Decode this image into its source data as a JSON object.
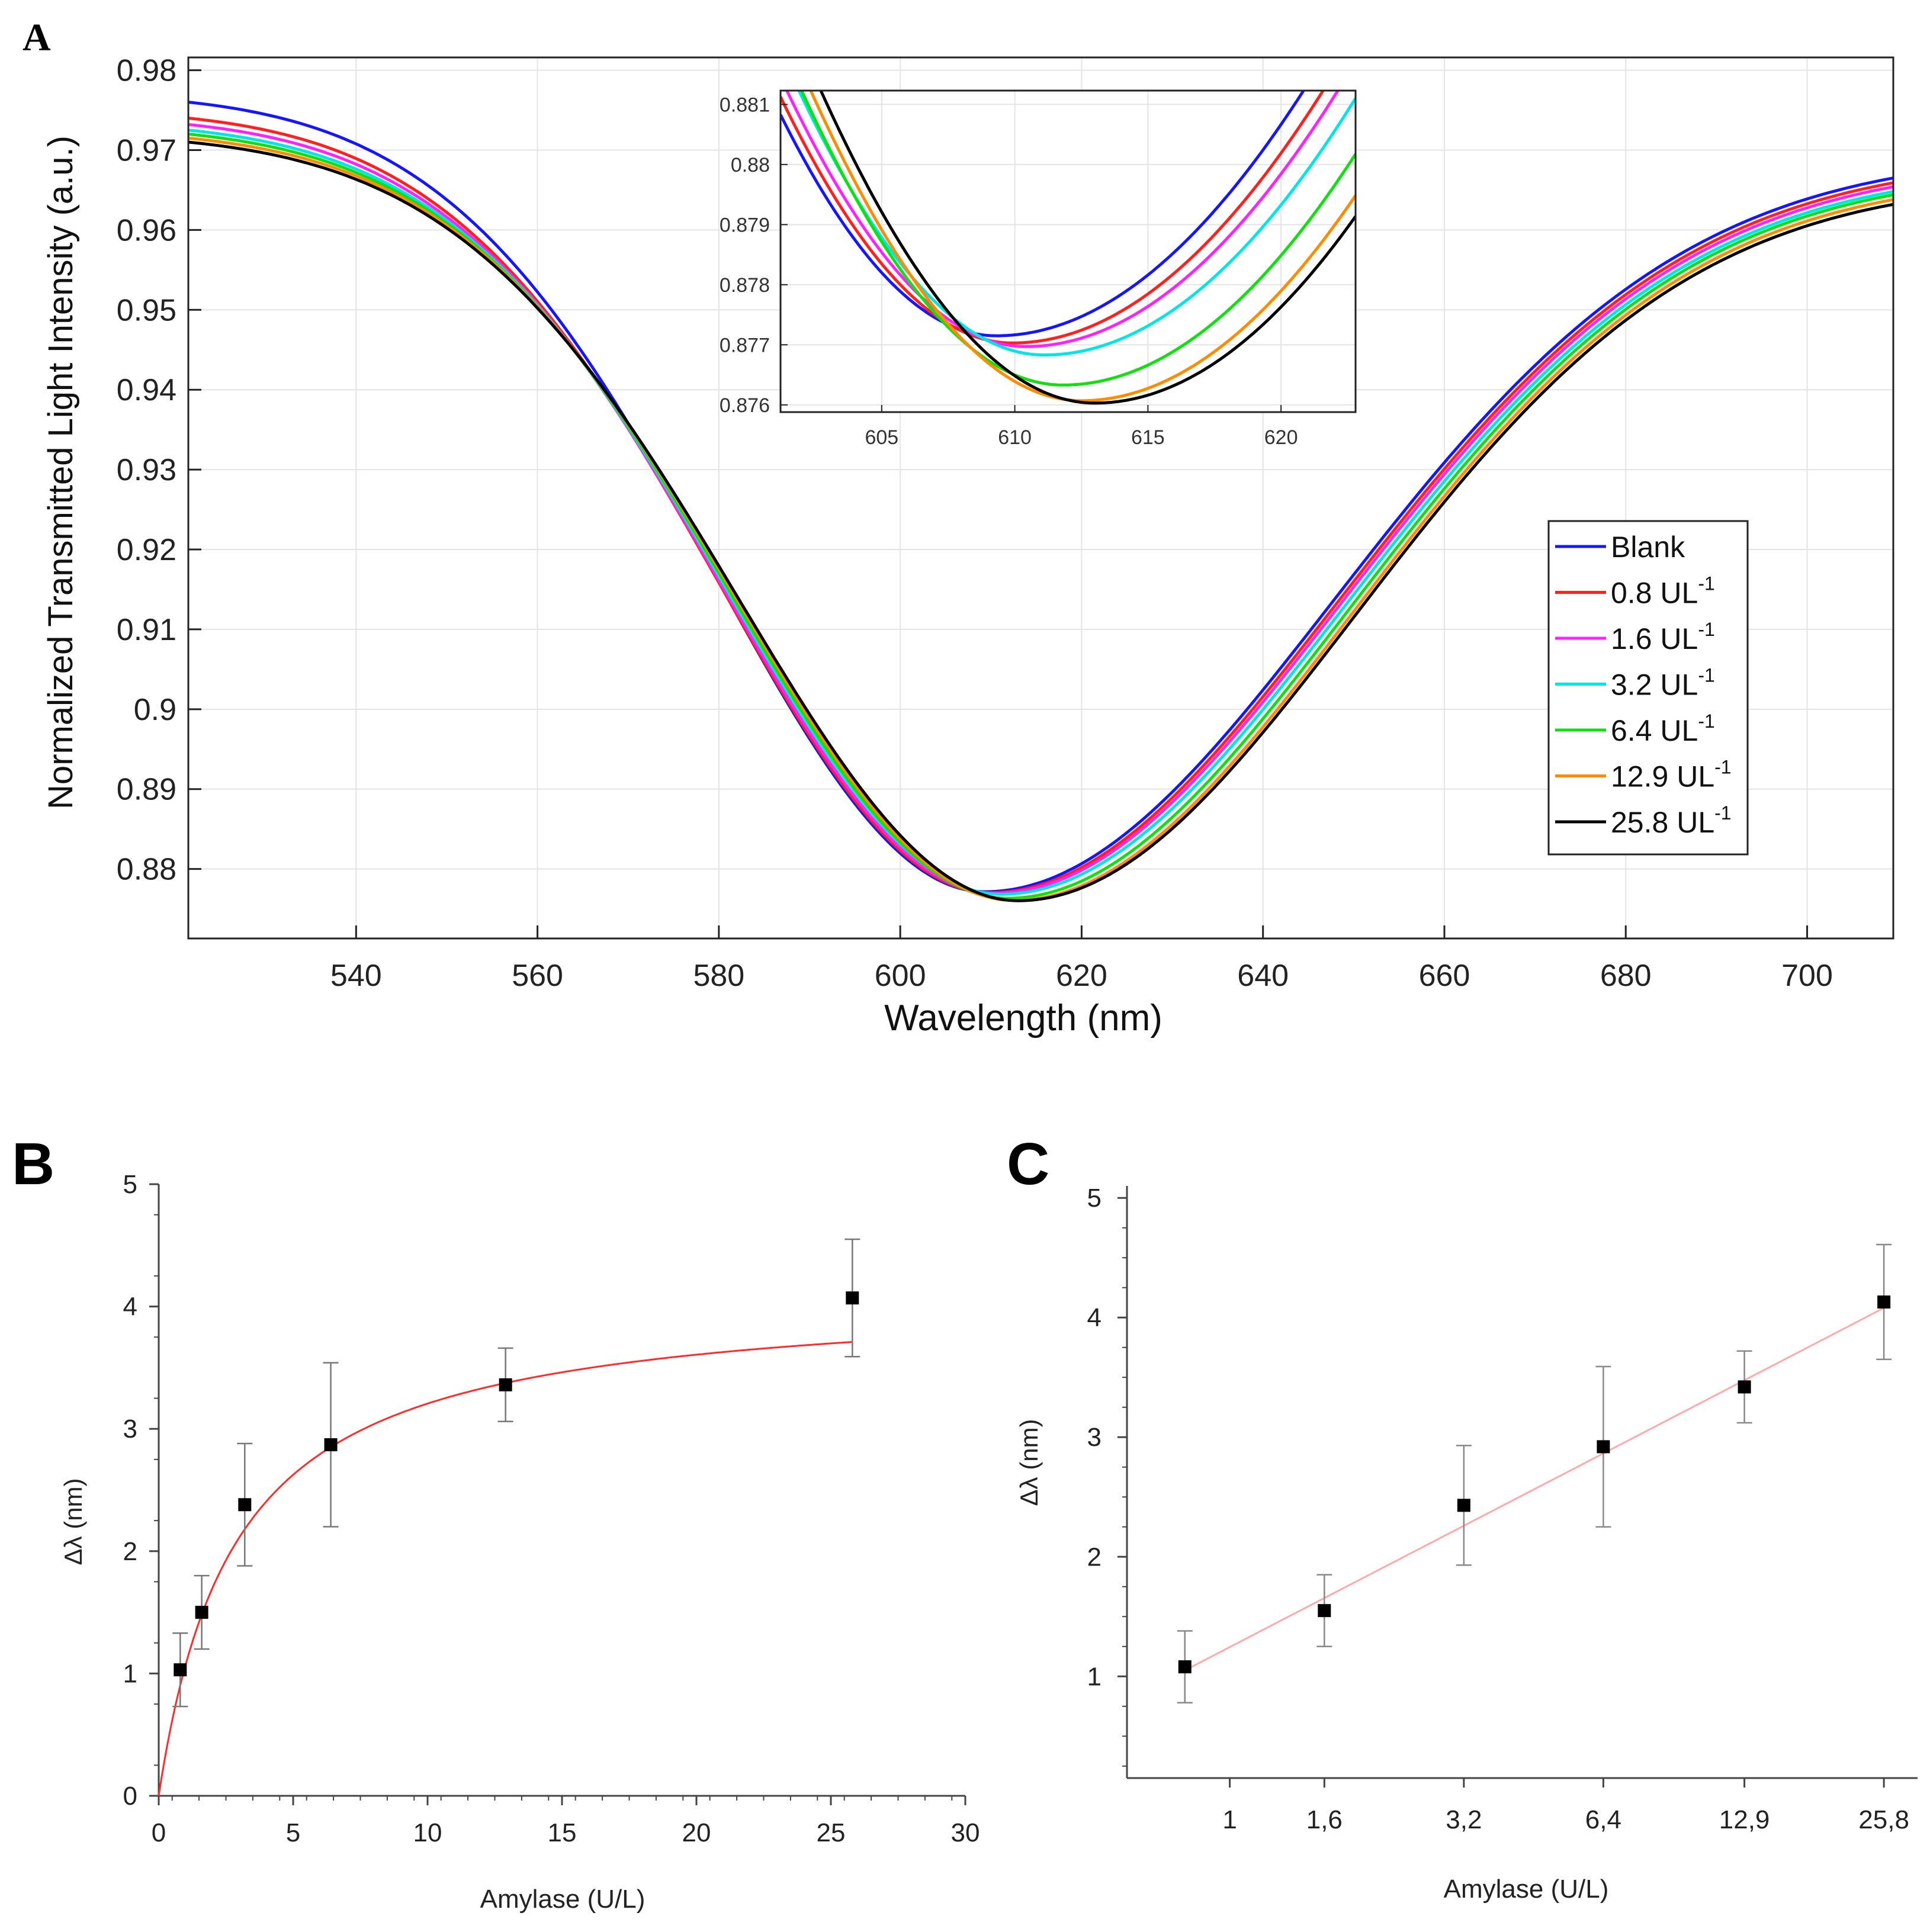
{
  "chart_data": [
    {
      "panel": "A",
      "type": "line",
      "title": "",
      "xlabel": "Wavelength (nm)",
      "ylabel": "Normalized Transmitted Light Intensity (a.u.)",
      "xlim": [
        521.5,
        709.5
      ],
      "ylim": [
        0.8713,
        0.9816
      ],
      "xticks": [
        540,
        560,
        580,
        600,
        620,
        640,
        660,
        680,
        700
      ],
      "xtick_labels": [
        "540",
        "560",
        "580",
        "600",
        "620",
        "640",
        "660",
        "680",
        "700"
      ],
      "yticks": [
        0.88,
        0.89,
        0.9,
        0.91,
        0.92,
        0.93,
        0.94,
        0.95,
        0.96,
        0.97,
        0.98
      ],
      "ytick_labels": [
        "0.88",
        "0.89",
        "0.9",
        "0.91",
        "0.92",
        "0.93",
        "0.94",
        "0.95",
        "0.96",
        "0.97",
        "0.98"
      ],
      "grid": true,
      "legend_position": "right",
      "series": [
        {
          "name": "Blank",
          "unit": "",
          "color": "#1515ff",
          "start": 0.976,
          "min_x": 609.3,
          "min_y": 0.87715,
          "end": 0.9665
        },
        {
          "name": "0.8 UL",
          "unit": "-1",
          "color": "#ff2020",
          "start": 0.974,
          "min_x": 609.9,
          "min_y": 0.87703,
          "end": 0.9659
        },
        {
          "name": "1.6 UL",
          "unit": "-1",
          "color": "#ff22ff",
          "start": 0.9732,
          "min_x": 610.4,
          "min_y": 0.87697,
          "end": 0.9654
        },
        {
          "name": "3.2 UL",
          "unit": "-1",
          "color": "#00e5e5",
          "start": 0.9725,
          "min_x": 611.1,
          "min_y": 0.87683,
          "end": 0.9648
        },
        {
          "name": "6.4 UL",
          "unit": "-1",
          "color": "#10e010",
          "start": 0.972,
          "min_x": 611.8,
          "min_y": 0.87633,
          "end": 0.9644
        },
        {
          "name": "12.9 UL",
          "unit": "-1",
          "color": "#ff8c00",
          "start": 0.9715,
          "min_x": 612.5,
          "min_y": 0.87607,
          "end": 0.9638
        },
        {
          "name": "25.8 UL",
          "unit": "-1",
          "color": "#000000",
          "start": 0.971,
          "min_x": 613.0,
          "min_y": 0.87603,
          "end": 0.9632
        }
      ],
      "inset": {
        "xlim": [
          601.2,
          622.8
        ],
        "ylim": [
          0.87588,
          0.88123
        ],
        "xticks": [
          605,
          610,
          615,
          620
        ],
        "xtick_labels": [
          "605",
          "610",
          "615",
          "620"
        ],
        "yticks": [
          0.876,
          0.877,
          0.878,
          0.879,
          0.88,
          0.881
        ],
        "ytick_labels": [
          "0.876",
          "0.877",
          "0.878",
          "0.879",
          "0.88",
          "0.881"
        ]
      }
    },
    {
      "panel": "B",
      "type": "scatter",
      "title": "",
      "xlabel": "Amylase (U/L)",
      "ylabel": "Δλ (nm)",
      "xlim": [
        0,
        30
      ],
      "ylim": [
        0,
        5
      ],
      "xticks": [
        0,
        5,
        10,
        15,
        20,
        25,
        30
      ],
      "xtick_labels": [
        "0",
        "5",
        "10",
        "15",
        "20",
        "25",
        "30"
      ],
      "yticks": [
        0,
        1,
        2,
        3,
        4,
        5
      ],
      "ytick_labels": [
        "0",
        "1",
        "2",
        "3",
        "4",
        "5"
      ],
      "x": [
        0.8,
        1.6,
        3.2,
        6.4,
        12.9,
        25.8
      ],
      "y": [
        1.03,
        1.5,
        2.38,
        2.87,
        3.36,
        4.07
      ],
      "yerr": [
        0.3,
        0.3,
        0.5,
        0.67,
        0.3,
        0.48
      ],
      "fit": {
        "type": "hyperbolic",
        "vmax": 4.12,
        "k": 2.85,
        "x_max": 25.8,
        "color": "#ff2a2a"
      }
    },
    {
      "panel": "C",
      "type": "scatter",
      "title": "",
      "xlabel": "Amylase (U/L)",
      "ylabel": "Δλ (nm)",
      "xscale": "log",
      "xlim": [
        0.6,
        30.5
      ],
      "ylim": [
        0.15,
        5.1
      ],
      "xticks": [
        1,
        1.6,
        3.2,
        6.4,
        12.9,
        25.8
      ],
      "xtick_labels": [
        "1",
        "1,6",
        "3,2",
        "6,4",
        "12,9",
        "25,8"
      ],
      "yticks": [
        1,
        2,
        3,
        4,
        5
      ],
      "ytick_labels": [
        "1",
        "2",
        "3",
        "4",
        "5"
      ],
      "x": [
        0.8,
        1.6,
        3.2,
        6.4,
        12.9,
        25.8
      ],
      "y": [
        1.08,
        1.55,
        2.43,
        2.92,
        3.42,
        4.13
      ],
      "yerr": [
        0.3,
        0.3,
        0.5,
        0.67,
        0.3,
        0.48
      ],
      "fit": {
        "type": "log-linear",
        "x_range": [
          0.8,
          25.8
        ],
        "y_range": [
          1.05,
          4.08
        ],
        "color": "#ffaaaa"
      }
    }
  ],
  "panels": {
    "a": "A",
    "b": "B",
    "c": "C"
  }
}
